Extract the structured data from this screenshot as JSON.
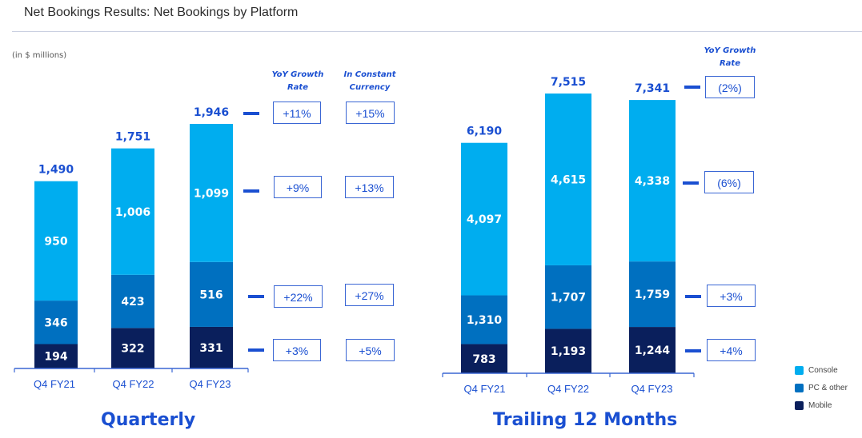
{
  "header": {
    "title": "Net Bookings Results: Net Bookings by Platform",
    "unit_note": "(in $ millions)"
  },
  "colors": {
    "console": "#00adef",
    "pc_other": "#0070c0",
    "mobile": "#0a1f5c",
    "accent": "#1a4fd1"
  },
  "legend": [
    {
      "label": "Console",
      "color": "#00adef"
    },
    {
      "label": "PC & other",
      "color": "#0070c0"
    },
    {
      "label": "Mobile",
      "color": "#0a1f5c"
    }
  ],
  "chart_data": [
    {
      "type": "bar",
      "stacked": true,
      "title": "Quarterly",
      "categories": [
        "Q4 FY21",
        "Q4 FY22",
        "Q4 FY23"
      ],
      "series": [
        {
          "name": "Mobile",
          "values": [
            194,
            322,
            331
          ],
          "labels": [
            "194",
            "322",
            "331"
          ]
        },
        {
          "name": "PC & other",
          "values": [
            346,
            423,
            516
          ],
          "labels": [
            "346",
            "423",
            "516"
          ]
        },
        {
          "name": "Console",
          "values": [
            950,
            1006,
            1099
          ],
          "labels": [
            "950",
            "1,006",
            "1,099"
          ]
        }
      ],
      "totals": [
        1490,
        1751,
        1946
      ],
      "total_labels": [
        "1,490",
        "1,751",
        "1,946"
      ],
      "growth_headers": [
        "YoY Growth Rate",
        "In Constant Currency"
      ],
      "yoy_growth": {
        "total": "+11%",
        "Console": "+9%",
        "PC & other": "+22%",
        "Mobile": "+3%"
      },
      "constant_currency": {
        "total": "+15%",
        "Console": "+13%",
        "PC & other": "+27%",
        "Mobile": "+5%"
      },
      "ylim": [
        0,
        1946
      ]
    },
    {
      "type": "bar",
      "stacked": true,
      "title": "Trailing 12 Months",
      "categories": [
        "Q4 FY21",
        "Q4 FY22",
        "Q4 FY23"
      ],
      "series": [
        {
          "name": "Mobile",
          "values": [
            783,
            1193,
            1244
          ],
          "labels": [
            "783",
            "1,193",
            "1,244"
          ]
        },
        {
          "name": "PC & other",
          "values": [
            1310,
            1707,
            1759
          ],
          "labels": [
            "1,310",
            "1,707",
            "1,759"
          ]
        },
        {
          "name": "Console",
          "values": [
            4097,
            4615,
            4338
          ],
          "labels": [
            "4,097",
            "4,615",
            "4,338"
          ]
        }
      ],
      "totals": [
        6190,
        7515,
        7341
      ],
      "total_labels": [
        "6,190",
        "7,515",
        "7,341"
      ],
      "growth_headers": [
        "YoY Growth Rate"
      ],
      "yoy_growth": {
        "total": "(2%)",
        "Console": "(6%)",
        "PC & other": "+3%",
        "Mobile": "+4%"
      },
      "ylim": [
        0,
        7515
      ]
    }
  ],
  "headers": {
    "q_yoy_line1": "YoY Growth",
    "q_yoy_line2": "Rate",
    "q_cc_line1": "In Constant",
    "q_cc_line2": "Currency",
    "t_yoy_line1": "YoY Growth",
    "t_yoy_line2": "Rate"
  }
}
